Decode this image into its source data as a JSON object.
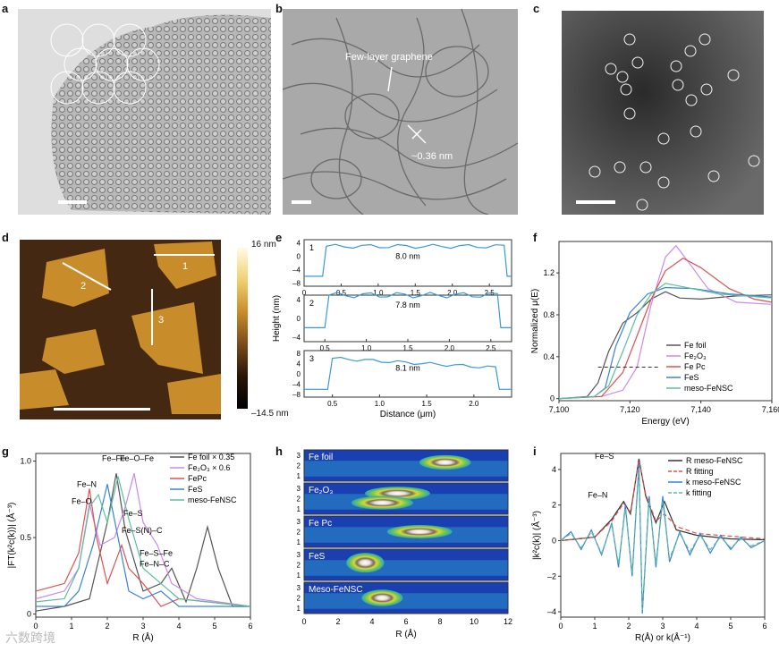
{
  "labels": {
    "a": "a",
    "b": "b",
    "c": "c",
    "d": "d",
    "e": "e",
    "f": "f",
    "g": "g",
    "h": "h",
    "i": "i"
  },
  "panel_b": {
    "annotation1": "Few-layer graphene",
    "annotation2": "~0.36 nm"
  },
  "panel_d": {
    "colorbar_max": "16 nm",
    "colorbar_min": "–14.5 nm",
    "line_labels": [
      "1",
      "2",
      "3"
    ]
  },
  "panel_e": {
    "ylabel": "Height (nm)",
    "xlabel": "Distance (μm)",
    "profiles": [
      {
        "id": "1",
        "annotation": "8.0 nm",
        "xticks": [
          "0",
          "0.5",
          "1.0",
          "1.5",
          "2.0",
          "2.5"
        ],
        "yticks": [
          "4",
          "0",
          "–4",
          "–8"
        ],
        "xdomain": [
          0,
          2.8
        ]
      },
      {
        "id": "2",
        "annotation": "7.8 nm",
        "xticks": [
          "0.5",
          "1.0",
          "1.5",
          "2.0",
          "2.5"
        ],
        "yticks": [
          "4",
          "0",
          "–4"
        ],
        "xdomain": [
          0.25,
          2.75
        ]
      },
      {
        "id": "3",
        "annotation": "8.1 nm",
        "xticks": [
          "0.5",
          "1.0",
          "1.5",
          "2.0"
        ],
        "yticks": [
          "8",
          "4",
          "0",
          "–4",
          "–8"
        ],
        "xdomain": [
          0.2,
          2.4
        ]
      }
    ]
  },
  "chart_data": [
    {
      "type": "line",
      "panel": "f",
      "xlabel": "Energy (eV)",
      "ylabel": "Normalized μ(E)",
      "xlim": [
        7100,
        7160
      ],
      "ylim": [
        -0.02,
        1.5
      ],
      "xticks": [
        "7,100",
        "7,120",
        "7,140",
        "7,160"
      ],
      "yticks": [
        "0",
        "0.4",
        "0.8",
        "1.2"
      ],
      "legend_position": "bottom-right",
      "series": [
        {
          "name": "Fe foil",
          "color": "#555555",
          "points": [
            [
              7100,
              0
            ],
            [
              7108,
              0.02
            ],
            [
              7111,
              0.15
            ],
            [
              7114,
              0.45
            ],
            [
              7118,
              0.72
            ],
            [
              7122,
              0.82
            ],
            [
              7126,
              0.95
            ],
            [
              7130,
              1.02
            ],
            [
              7134,
              0.96
            ],
            [
              7140,
              0.95
            ],
            [
              7150,
              0.98
            ],
            [
              7160,
              0.99
            ]
          ]
        },
        {
          "name": "Fe₂O₃",
          "color": "#cc88ee",
          "points": [
            [
              7100,
              0
            ],
            [
              7112,
              0.02
            ],
            [
              7118,
              0.08
            ],
            [
              7122,
              0.3
            ],
            [
              7126,
              0.9
            ],
            [
              7130,
              1.35
            ],
            [
              7133,
              1.46
            ],
            [
              7137,
              1.28
            ],
            [
              7142,
              1.05
            ],
            [
              7150,
              0.92
            ],
            [
              7160,
              0.9
            ]
          ]
        },
        {
          "name": "Fe Pc",
          "color": "#e05050",
          "points": [
            [
              7100,
              0
            ],
            [
              7112,
              0.02
            ],
            [
              7118,
              0.25
            ],
            [
              7122,
              0.6
            ],
            [
              7126,
              0.95
            ],
            [
              7130,
              1.22
            ],
            [
              7135,
              1.34
            ],
            [
              7140,
              1.25
            ],
            [
              7148,
              1.05
            ],
            [
              7155,
              0.95
            ],
            [
              7160,
              0.92
            ]
          ]
        },
        {
          "name": "FeS",
          "color": "#3a82d6",
          "points": [
            [
              7100,
              0
            ],
            [
              7110,
              0.02
            ],
            [
              7113,
              0.1
            ],
            [
              7116,
              0.5
            ],
            [
              7120,
              0.82
            ],
            [
              7125,
              1.0
            ],
            [
              7130,
              1.06
            ],
            [
              7138,
              1.05
            ],
            [
              7148,
              1.0
            ],
            [
              7160,
              0.97
            ]
          ]
        },
        {
          "name": "meso-FeNSC",
          "color": "#5cbf9a",
          "points": [
            [
              7100,
              0
            ],
            [
              7110,
              0.02
            ],
            [
              7114,
              0.12
            ],
            [
              7118,
              0.45
            ],
            [
              7122,
              0.8
            ],
            [
              7126,
              1.0
            ],
            [
              7130,
              1.1
            ],
            [
              7136,
              1.06
            ],
            [
              7145,
              1.0
            ],
            [
              7160,
              0.96
            ]
          ]
        }
      ]
    },
    {
      "type": "line",
      "panel": "g",
      "xlabel": "R (Å)",
      "ylabel": "|FT(k²c(k))| (Å⁻³)",
      "xlim": [
        0,
        6
      ],
      "ylim": [
        -0.02,
        1.05
      ],
      "xticks": [
        "0",
        "1",
        "2",
        "3",
        "4",
        "5",
        "6"
      ],
      "yticks": [
        "0",
        "0.5",
        "1.0"
      ],
      "legend_position": "top-right",
      "annotations": [
        "Fe–Fe",
        "Fe–O–Fe",
        "Fe–N",
        "Fe–O",
        "Fe–S",
        "Fe–S(N)–C",
        "Fe–S–Fe",
        "Fe–N–C"
      ],
      "series": [
        {
          "name": "Fe foil × 0.35",
          "color": "#555555",
          "points": [
            [
              0,
              0.02
            ],
            [
              0.8,
              0.05
            ],
            [
              1.5,
              0.1
            ],
            [
              2.0,
              0.6
            ],
            [
              2.25,
              0.92
            ],
            [
              2.5,
              0.55
            ],
            [
              3.0,
              0.15
            ],
            [
              3.5,
              0.2
            ],
            [
              3.8,
              0.3
            ],
            [
              4.2,
              0.08
            ],
            [
              4.5,
              0.3
            ],
            [
              4.8,
              0.57
            ],
            [
              5.1,
              0.3
            ],
            [
              5.5,
              0.05
            ],
            [
              6,
              0.05
            ]
          ]
        },
        {
          "name": "Fe₂O₃ × 0.6",
          "color": "#cc88ee",
          "points": [
            [
              0,
              0.1
            ],
            [
              0.8,
              0.15
            ],
            [
              1.2,
              0.3
            ],
            [
              1.5,
              0.72
            ],
            [
              1.8,
              0.45
            ],
            [
              2.2,
              0.5
            ],
            [
              2.5,
              0.7
            ],
            [
              2.75,
              0.92
            ],
            [
              3.0,
              0.6
            ],
            [
              3.4,
              0.45
            ],
            [
              3.8,
              0.2
            ],
            [
              4.5,
              0.1
            ],
            [
              6,
              0.05
            ]
          ]
        },
        {
          "name": "FePc",
          "color": "#e05050",
          "points": [
            [
              0,
              0.15
            ],
            [
              0.8,
              0.2
            ],
            [
              1.2,
              0.4
            ],
            [
              1.5,
              0.82
            ],
            [
              1.7,
              0.5
            ],
            [
              2.0,
              0.2
            ],
            [
              2.4,
              0.45
            ],
            [
              2.6,
              0.3
            ],
            [
              3.0,
              0.2
            ],
            [
              3.5,
              0.05
            ],
            [
              4,
              0.1
            ],
            [
              6,
              0.05
            ]
          ]
        },
        {
          "name": "FeS",
          "color": "#3a82d6",
          "points": [
            [
              0,
              0.05
            ],
            [
              0.8,
              0.05
            ],
            [
              1.2,
              0.15
            ],
            [
              1.6,
              0.45
            ],
            [
              2.0,
              0.85
            ],
            [
              2.3,
              0.5
            ],
            [
              2.6,
              0.15
            ],
            [
              3.0,
              0.1
            ],
            [
              3.5,
              0.15
            ],
            [
              4,
              0.05
            ],
            [
              6,
              0.05
            ]
          ]
        },
        {
          "name": "meso-FeNSC",
          "color": "#5cbf9a",
          "points": [
            [
              0,
              0.08
            ],
            [
              0.8,
              0.1
            ],
            [
              1.2,
              0.3
            ],
            [
              1.5,
              0.7
            ],
            [
              1.75,
              0.78
            ],
            [
              2.0,
              0.6
            ],
            [
              2.3,
              0.9
            ],
            [
              2.6,
              0.62
            ],
            [
              3.0,
              0.3
            ],
            [
              3.5,
              0.2
            ],
            [
              4,
              0.1
            ],
            [
              6,
              0.05
            ]
          ]
        }
      ]
    },
    {
      "type": "heatmap",
      "panel": "h",
      "xlabel": "R (Å)",
      "xticks": [
        "0",
        "2",
        "4",
        "6",
        "8",
        "10",
        "12"
      ],
      "rows": [
        {
          "name": "Fe foil",
          "yticks": [
            "3",
            "2",
            "1"
          ],
          "blobs": [
            [
              8.3,
              2.3,
              2.4,
              0.35
            ]
          ]
        },
        {
          "name": "Fe₂O₃",
          "yticks": [
            "3",
            "2",
            "1"
          ],
          "blobs": [
            [
              5.5,
              2.5,
              3.2,
              0.3
            ],
            [
              4.6,
              1.6,
              3.0,
              0.3
            ]
          ]
        },
        {
          "name": "Fe Pc",
          "yticks": [
            "3",
            "2",
            "1"
          ],
          "blobs": [
            [
              6.8,
              2.0,
              3.2,
              0.3
            ]
          ]
        },
        {
          "name": "FeS",
          "yticks": [
            "3",
            "2",
            "1"
          ],
          "blobs": [
            [
              3.6,
              2.2,
              1.6,
              0.6
            ]
          ]
        },
        {
          "name": "Meso-FeNSC",
          "yticks": [
            "3",
            "2",
            "1"
          ],
          "blobs": [
            [
              4.6,
              2.0,
              1.8,
              0.45
            ]
          ]
        }
      ]
    },
    {
      "type": "line",
      "panel": "i",
      "xlabel": "R(Å) or k(Å⁻¹)",
      "ylabel": "|k²c(k)| (Å⁻³)",
      "xlim": [
        0,
        6
      ],
      "ylim": [
        -4.3,
        4.9
      ],
      "xticks": [
        "0",
        "1",
        "2",
        "3",
        "4",
        "5",
        "6"
      ],
      "yticks": [
        "4",
        "2",
        "0",
        "–2",
        "–4"
      ],
      "legend_position": "top-right",
      "annotations": [
        "Fe–S",
        "Fe–N"
      ],
      "series": [
        {
          "name": "R meso-FeNSC",
          "color": "#333333",
          "dash": "",
          "points": [
            [
              0,
              0
            ],
            [
              0.5,
              0.1
            ],
            [
              1.0,
              0.2
            ],
            [
              1.5,
              1.2
            ],
            [
              1.85,
              2.2
            ],
            [
              2.05,
              1.5
            ],
            [
              2.3,
              4.6
            ],
            [
              2.5,
              2.5
            ],
            [
              2.8,
              1.0
            ],
            [
              3.05,
              2.2
            ],
            [
              3.4,
              0.6
            ],
            [
              4,
              0.3
            ],
            [
              5,
              0.1
            ],
            [
              6,
              0.05
            ]
          ]
        },
        {
          "name": "R fitting",
          "color": "#e05050",
          "dash": "5,3",
          "points": [
            [
              0,
              0
            ],
            [
              0.5,
              0.1
            ],
            [
              1.0,
              0.2
            ],
            [
              1.5,
              1.1
            ],
            [
              1.85,
              2.1
            ],
            [
              2.05,
              1.6
            ],
            [
              2.3,
              4.5
            ],
            [
              2.5,
              2.6
            ],
            [
              2.8,
              1.1
            ],
            [
              3.05,
              1.5
            ],
            [
              3.4,
              0.8
            ],
            [
              4,
              0.4
            ],
            [
              6,
              0.1
            ]
          ]
        },
        {
          "name": "k meso-FeNSC",
          "color": "#3a82d6",
          "dash": "",
          "points": [
            [
              0,
              0
            ],
            [
              0.3,
              0.5
            ],
            [
              0.6,
              -0.5
            ],
            [
              0.9,
              0.6
            ],
            [
              1.2,
              -0.8
            ],
            [
              1.5,
              1.0
            ],
            [
              1.7,
              -1.5
            ],
            [
              1.9,
              2.0
            ],
            [
              2.1,
              -2.0
            ],
            [
              2.3,
              4.3
            ],
            [
              2.4,
              -4.1
            ],
            [
              2.6,
              2.5
            ],
            [
              2.8,
              -1.5
            ],
            [
              3.0,
              2.5
            ],
            [
              3.2,
              -1.2
            ],
            [
              3.5,
              0.5
            ],
            [
              3.8,
              -0.8
            ],
            [
              4.1,
              0.4
            ],
            [
              4.4,
              -0.7
            ],
            [
              4.7,
              0.3
            ],
            [
              5.0,
              -0.5
            ],
            [
              5.3,
              0.2
            ],
            [
              5.6,
              -0.4
            ],
            [
              6,
              0
            ]
          ]
        },
        {
          "name": "k fitting",
          "color": "#5cbf9a",
          "dash": "5,3",
          "points": [
            [
              0,
              0
            ],
            [
              0.3,
              0.4
            ],
            [
              0.6,
              -0.4
            ],
            [
              0.9,
              0.5
            ],
            [
              1.2,
              -0.7
            ],
            [
              1.5,
              0.9
            ],
            [
              1.7,
              -1.3
            ],
            [
              1.9,
              1.8
            ],
            [
              2.1,
              -1.8
            ],
            [
              2.3,
              4.1
            ],
            [
              2.4,
              -3.9
            ],
            [
              2.6,
              2.3
            ],
            [
              2.8,
              -1.3
            ],
            [
              3.0,
              2.2
            ],
            [
              3.2,
              -1.0
            ],
            [
              3.5,
              0.4
            ],
            [
              3.8,
              -0.6
            ],
            [
              4.1,
              0.3
            ],
            [
              4.4,
              -0.5
            ],
            [
              4.7,
              0.2
            ],
            [
              5.0,
              -0.4
            ],
            [
              5.3,
              0.1
            ],
            [
              5.6,
              -0.3
            ],
            [
              6,
              0
            ]
          ]
        }
      ]
    }
  ],
  "watermark": "六数跨境"
}
